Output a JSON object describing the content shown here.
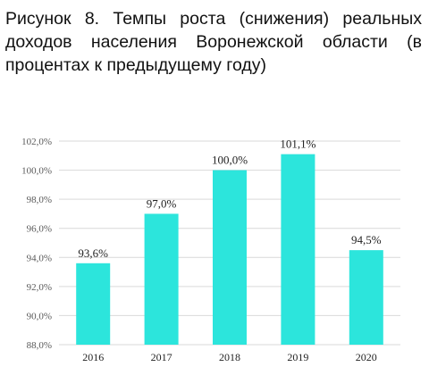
{
  "caption": "Рисунок 8. Темпы роста (снижения) реальных доходов населения Воронежской области (в процентах к предыдущему году)",
  "chart_data": {
    "type": "bar",
    "categories": [
      "2016",
      "2017",
      "2018",
      "2019",
      "2020"
    ],
    "values": [
      93.6,
      97.0,
      100.0,
      101.1,
      94.5
    ],
    "data_labels": [
      "93,6%",
      "97,0%",
      "100,0%",
      "101,1%",
      "94,5%"
    ],
    "ylim": [
      88,
      102
    ],
    "yticks": [
      88,
      90,
      92,
      94,
      96,
      98,
      100,
      102
    ],
    "ytick_labels": [
      "88,0%",
      "90,0%",
      "92,0%",
      "94,0%",
      "96,0%",
      "98,0%",
      "100,0%",
      "102,0%"
    ],
    "bar_color": "#2ce5dc",
    "grid": true,
    "grid_color": "#d9d9d9"
  }
}
